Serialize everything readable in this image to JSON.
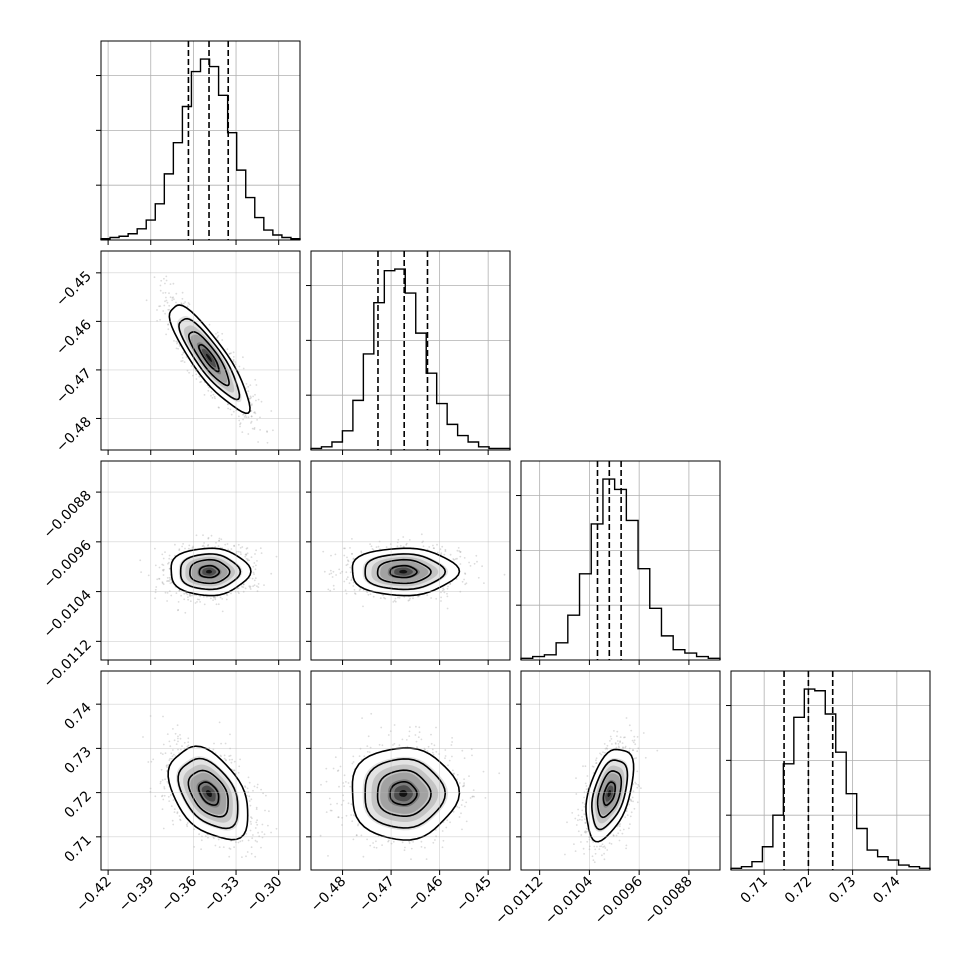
{
  "chart_data": {
    "type": "corner",
    "title": "",
    "grid": true,
    "parameters": [
      {
        "name": "",
        "range": [
          -0.425,
          -0.285
        ],
        "ticks": [
          "-0.42",
          "-0.39",
          "-0.36",
          "-0.33",
          "-0.30"
        ],
        "tick_values": [
          -0.42,
          -0.39,
          -0.36,
          -0.33,
          -0.3
        ]
      },
      {
        "name": "",
        "range": [
          -0.4865,
          -0.4455
        ],
        "ticks": [
          "-0.48",
          "-0.47",
          "-0.46",
          "-0.45"
        ],
        "tick_values": [
          -0.48,
          -0.47,
          -0.46,
          -0.45
        ]
      },
      {
        "name": "",
        "range": [
          -0.0115,
          -0.0083
        ],
        "ticks": [
          "-0.0112",
          "-0.0104",
          "-0.0096",
          "-0.0088"
        ],
        "tick_values": [
          -0.0112,
          -0.0104,
          -0.0096,
          -0.0088
        ]
      },
      {
        "name": "",
        "range": [
          0.7025,
          0.7475
        ],
        "ticks": [
          "0.71",
          "0.72",
          "0.73",
          "0.74"
        ],
        "tick_values": [
          0.71,
          0.72,
          0.73,
          0.74
        ]
      }
    ],
    "y_axis_ticks": {
      "1": [
        "-0.45",
        "-0.46",
        "-0.47",
        "-0.48"
      ],
      "2": [
        "-0.0088",
        "-0.0096",
        "-0.0104",
        "-0.0112"
      ],
      "3": [
        "0.74",
        "0.73",
        "0.72",
        "0.71"
      ]
    },
    "histograms": [
      {
        "param": 0,
        "bin_edges": [
          -0.425,
          -0.285
        ],
        "counts": [
          1,
          2,
          3,
          5,
          9,
          16,
          29,
          53,
          78,
          107,
          135,
          145,
          139,
          116,
          86,
          56,
          34,
          18,
          8,
          4,
          2,
          1
        ],
        "quantiles": [
          -0.3635,
          -0.349,
          -0.3355
        ]
      },
      {
        "param": 1,
        "bin_edges": [
          -0.4865,
          -0.4455
        ],
        "counts": [
          1,
          2,
          5,
          12,
          31,
          60,
          92,
          112,
          113,
          98,
          73,
          48,
          29,
          16,
          9,
          5,
          2,
          1,
          1
        ],
        "quantiles": [
          -0.4727,
          -0.4673,
          -0.4625
        ]
      },
      {
        "param": 2,
        "bin_edges": [
          -0.0115,
          -0.0083
        ],
        "counts": [
          1,
          2,
          3,
          10,
          26,
          50,
          79,
          105,
          99,
          81,
          53,
          30,
          14,
          6,
          4,
          2,
          1
        ],
        "quantiles": [
          -0.01027,
          -0.01008,
          -0.00989
        ]
      },
      {
        "param": 3,
        "bin_edges": [
          0.7025,
          0.7475
        ],
        "counts": [
          1,
          2,
          5,
          14,
          33,
          64,
          92,
          109,
          108,
          94,
          71,
          46,
          25,
          12,
          8,
          6,
          3,
          2,
          1
        ],
        "quantiles": [
          0.7145,
          0.72,
          0.7255
        ]
      }
    ],
    "pairs": [
      {
        "x": 0,
        "y": 1,
        "mean": [
          -0.349,
          -0.4675
        ],
        "sd": [
          0.014,
          0.0055
        ],
        "corr": -0.86
      },
      {
        "x": 0,
        "y": 2,
        "mean": [
          -0.349,
          -0.01008
        ],
        "sd": [
          0.014,
          0.00019
        ],
        "corr": 0.0
      },
      {
        "x": 1,
        "y": 2,
        "mean": [
          -0.4675,
          -0.01008
        ],
        "sd": [
          0.0055,
          0.00019
        ],
        "corr": 0.0
      },
      {
        "x": 0,
        "y": 3,
        "mean": [
          -0.349,
          0.7198
        ],
        "sd": [
          0.014,
          0.0052
        ],
        "corr": -0.42
      },
      {
        "x": 1,
        "y": 3,
        "mean": [
          -0.4675,
          0.7198
        ],
        "sd": [
          0.0055,
          0.0052
        ],
        "corr": 0.0
      },
      {
        "x": 2,
        "y": 3,
        "mean": [
          -0.01008,
          0.7198
        ],
        "sd": [
          0.00019,
          0.0052
        ],
        "corr": 0.45
      }
    ],
    "contour_levels_sigma": [
      0.5,
      1.0,
      1.5,
      2.0
    ],
    "colors": {
      "line": "#000000",
      "scatter": "#9a9a9a",
      "grid": "#b0b0b0"
    }
  }
}
